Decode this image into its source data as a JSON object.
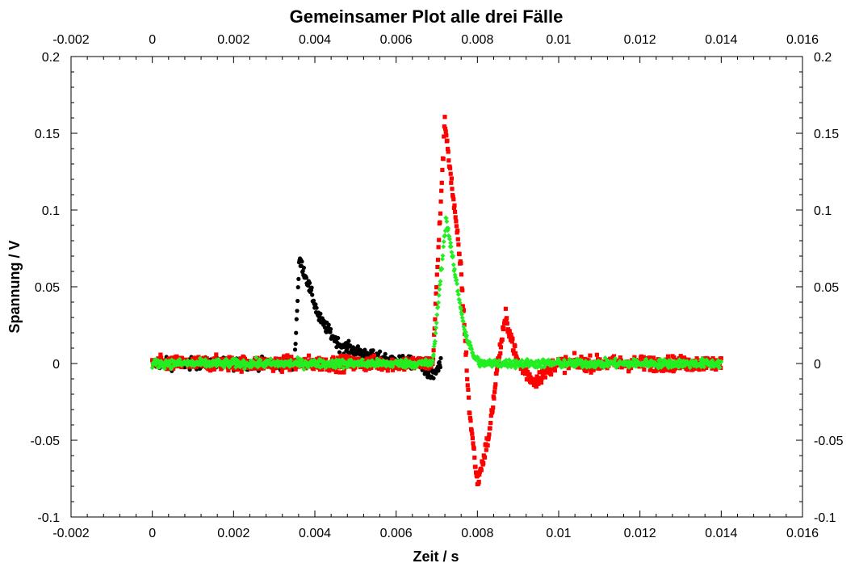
{
  "chart_data": {
    "type": "scatter",
    "title": "Gemeinsamer Plot alle drei Fälle",
    "xlabel": "Zeit / s",
    "ylabel": "Spannung / V",
    "xlim": [
      -0.002,
      0.016
    ],
    "ylim": [
      -0.1,
      0.2
    ],
    "x_ticks": [
      -0.002,
      0,
      0.002,
      0.004,
      0.006,
      0.008,
      0.01,
      0.012,
      0.014,
      0.016
    ],
    "x_tick_labels": [
      "-0.002",
      "0",
      "0.002",
      "0.004",
      "0.006",
      "0.008",
      "0.01",
      "0.012",
      "0.014",
      "0.016"
    ],
    "y_ticks": [
      -0.1,
      -0.05,
      0,
      0.05,
      0.1,
      0.15,
      0.2
    ],
    "y_tick_labels": [
      "-0.1",
      "-0.05",
      "0",
      "0.05",
      "0.1",
      "0.15",
      "0.2"
    ],
    "grid": false,
    "legend": "none",
    "series": [
      {
        "color": "#000000",
        "marker": "circle",
        "x_range": [
          0,
          0.0071
        ],
        "noise_amplitude": 0.004,
        "points": [
          [
            0,
            0
          ],
          [
            0.0035,
            0
          ],
          [
            0.00362,
            0.068
          ],
          [
            0.0038,
            0.055
          ],
          [
            0.0041,
            0.03
          ],
          [
            0.0046,
            0.012
          ],
          [
            0.0055,
            0.004
          ],
          [
            0.0065,
            0.0
          ],
          [
            0.0069,
            -0.008
          ],
          [
            0.0071,
            0.0
          ]
        ]
      },
      {
        "color": "#ff0000",
        "marker": "square",
        "x_range": [
          0,
          0.014
        ],
        "noise_amplitude": 0.005,
        "points": [
          [
            0,
            0
          ],
          [
            0.0069,
            0
          ],
          [
            0.0072,
            0.158
          ],
          [
            0.0076,
            0.06
          ],
          [
            0.0078,
            -0.03
          ],
          [
            0.008,
            -0.078
          ],
          [
            0.0083,
            -0.045
          ],
          [
            0.0085,
            0.0
          ],
          [
            0.0087,
            0.03
          ],
          [
            0.009,
            0.0
          ],
          [
            0.0094,
            -0.012
          ],
          [
            0.0099,
            0.0
          ],
          [
            0.014,
            0.0
          ]
        ]
      },
      {
        "color": "#22ee22",
        "marker": "diamond",
        "x_range": [
          0,
          0.014
        ],
        "noise_amplitude": 0.003,
        "points": [
          [
            0,
            0
          ],
          [
            0.0069,
            0
          ],
          [
            0.00723,
            0.095
          ],
          [
            0.0075,
            0.05
          ],
          [
            0.0077,
            0.02
          ],
          [
            0.0079,
            0.005
          ],
          [
            0.0081,
            0.0
          ],
          [
            0.014,
            0.0
          ]
        ]
      }
    ]
  }
}
